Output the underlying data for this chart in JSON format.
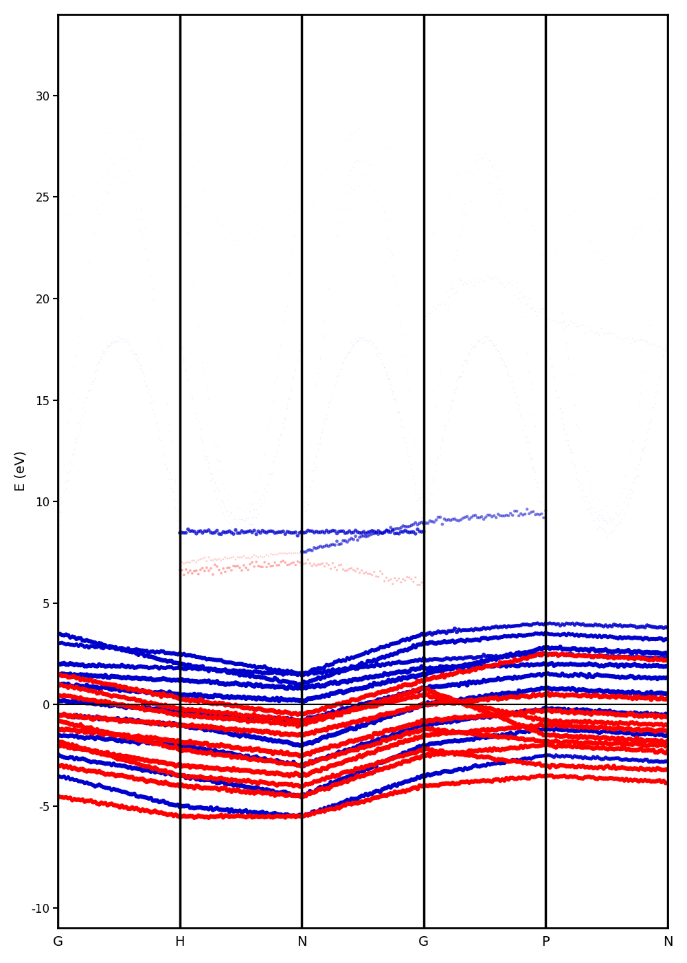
{
  "kpoint_labels": [
    "G",
    "H",
    "N",
    "G",
    "P",
    "N"
  ],
  "kpoint_positions": [
    0,
    1,
    2,
    3,
    4,
    5
  ],
  "ylim": [
    -11,
    34
  ],
  "yticks": [
    -10,
    -5,
    0,
    5,
    10,
    15,
    20,
    25,
    30
  ],
  "ylabel": "E (eV)",
  "fermi_level": 0.0,
  "color_up": "#ff0000",
  "color_down": "#0000cd",
  "figsize": [
    10.0,
    14.0
  ],
  "dpi": 100
}
